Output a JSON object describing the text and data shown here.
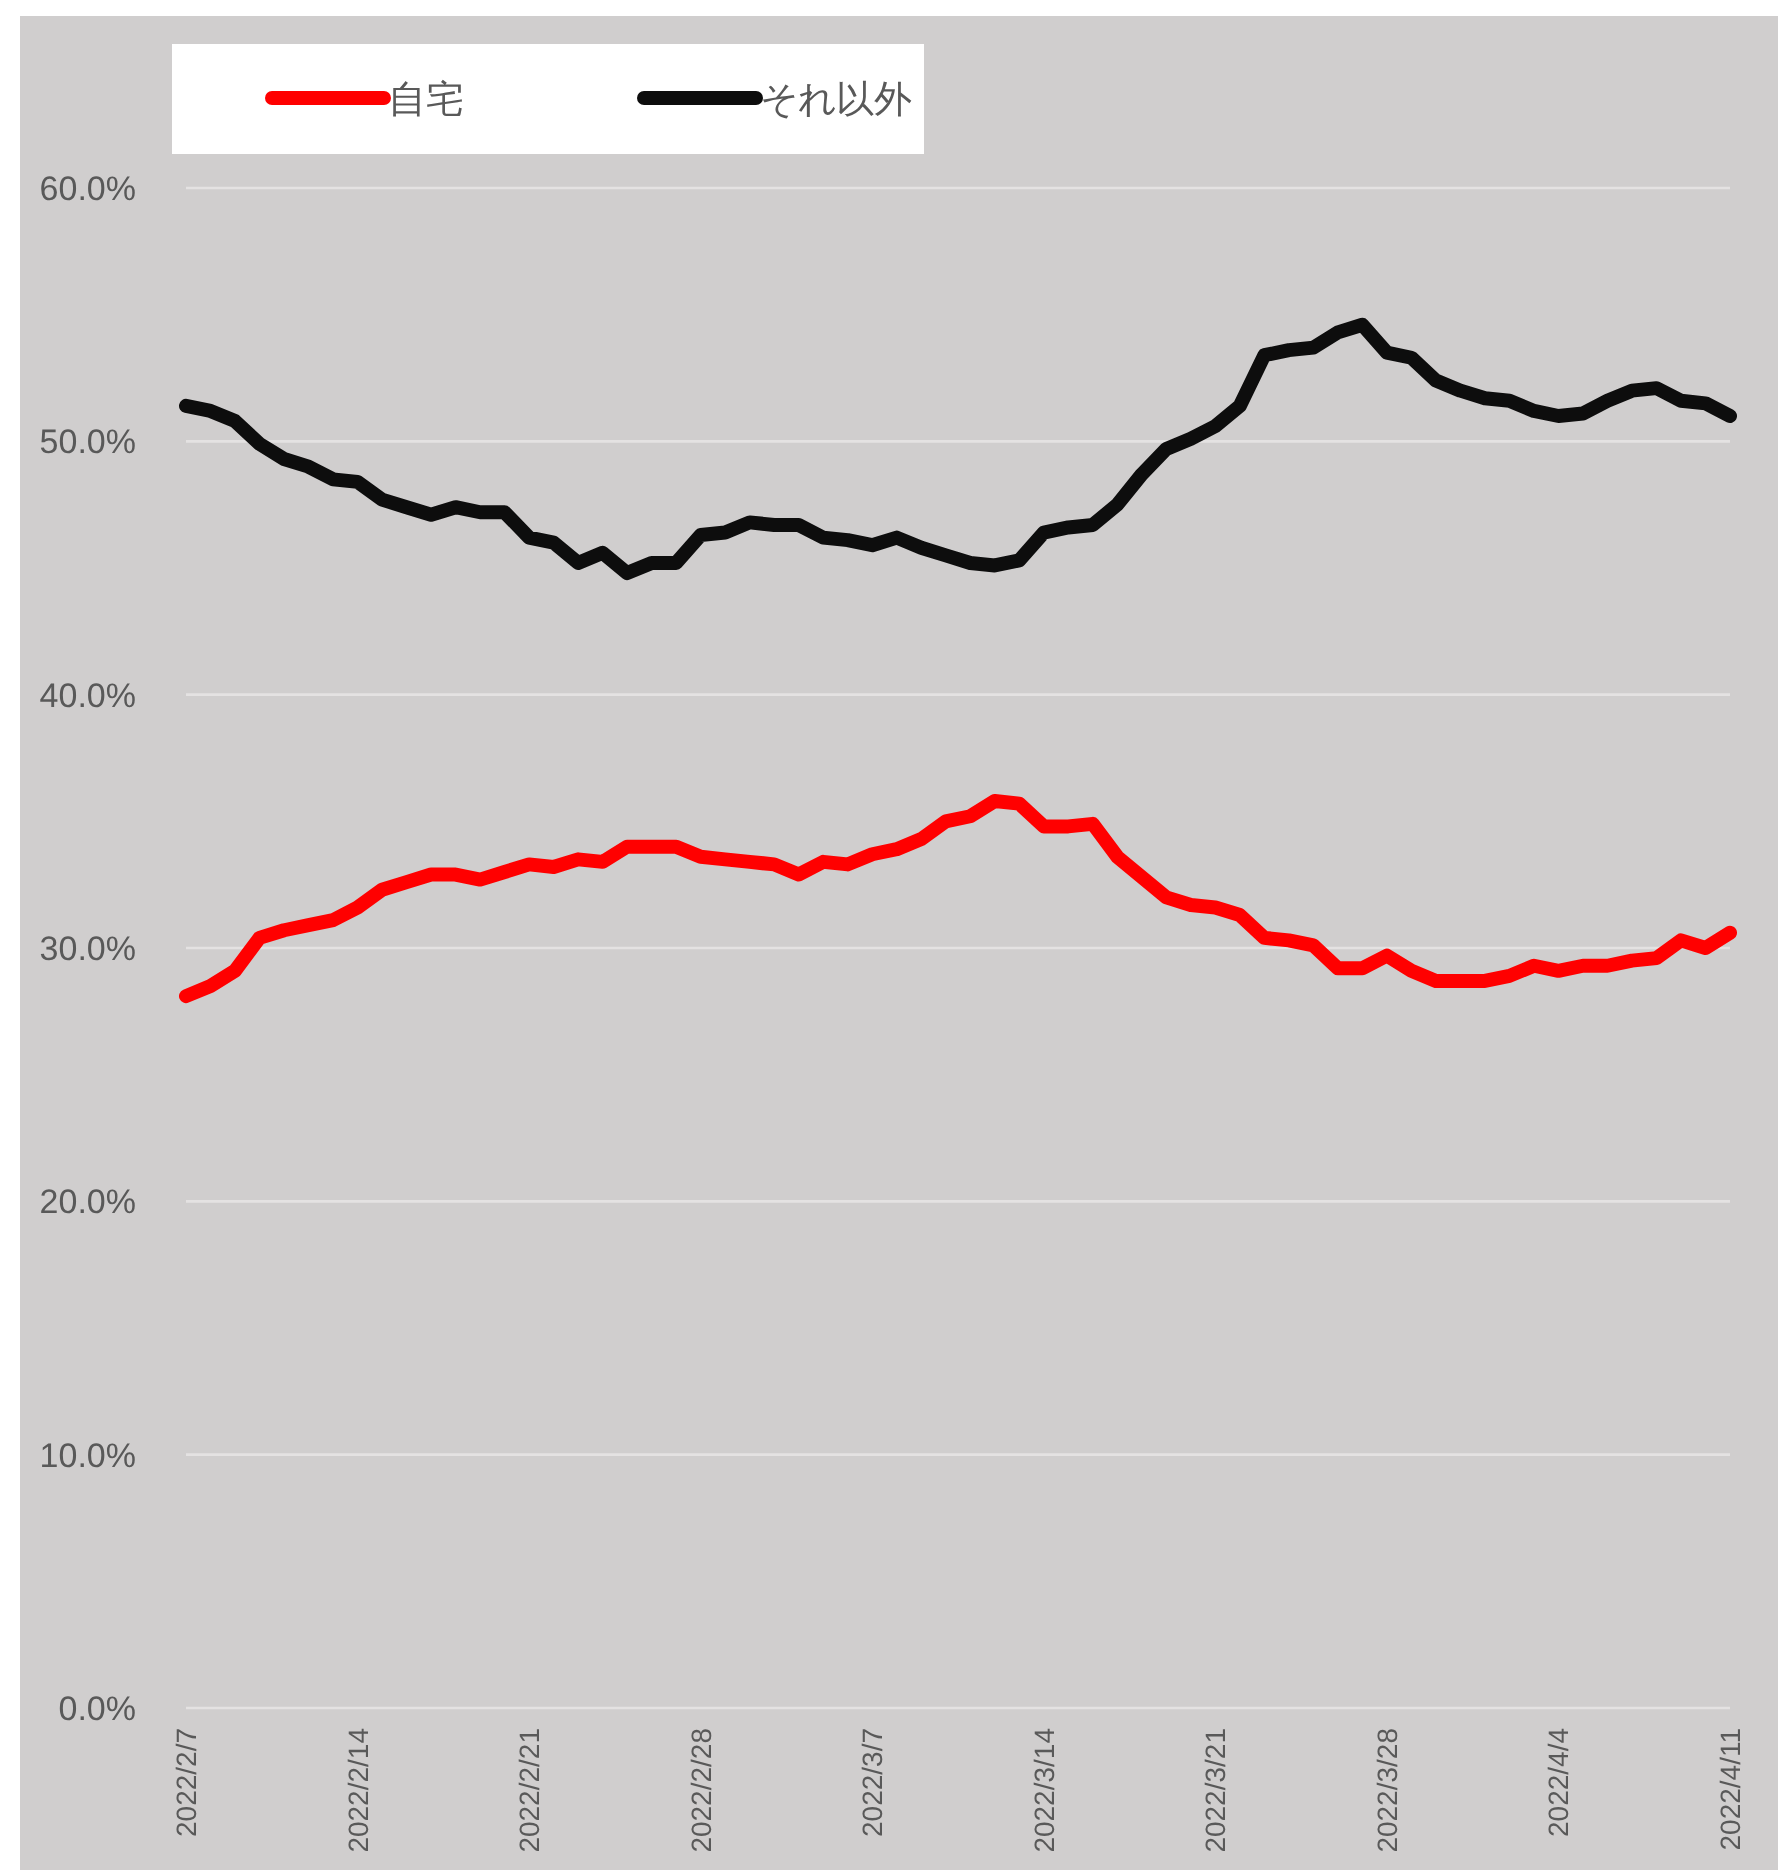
{
  "chart_data": {
    "type": "line",
    "x": [
      "2022-02-07",
      "2022-02-08",
      "2022-02-09",
      "2022-02-10",
      "2022-02-11",
      "2022-02-12",
      "2022-02-13",
      "2022-02-14",
      "2022-02-15",
      "2022-02-16",
      "2022-02-17",
      "2022-02-18",
      "2022-02-19",
      "2022-02-20",
      "2022-02-21",
      "2022-02-22",
      "2022-02-23",
      "2022-02-24",
      "2022-02-25",
      "2022-02-26",
      "2022-02-27",
      "2022-02-28",
      "2022-03-01",
      "2022-03-02",
      "2022-03-03",
      "2022-03-04",
      "2022-03-05",
      "2022-03-06",
      "2022-03-07",
      "2022-03-08",
      "2022-03-09",
      "2022-03-10",
      "2022-03-11",
      "2022-03-12",
      "2022-03-13",
      "2022-03-14",
      "2022-03-15",
      "2022-03-16",
      "2022-03-17",
      "2022-03-18",
      "2022-03-19",
      "2022-03-20",
      "2022-03-21",
      "2022-03-22",
      "2022-03-23",
      "2022-03-24",
      "2022-03-25",
      "2022-03-26",
      "2022-03-27",
      "2022-03-28",
      "2022-03-29",
      "2022-03-30",
      "2022-03-31",
      "2022-04-01",
      "2022-04-02",
      "2022-04-03",
      "2022-04-04",
      "2022-04-05",
      "2022-04-06",
      "2022-04-07",
      "2022-04-08",
      "2022-04-09",
      "2022-04-10",
      "2022-04-11"
    ],
    "series": [
      {
        "name": "自宅",
        "color": "#ff0000",
        "values": [
          28.1,
          28.5,
          29.1,
          30.4,
          30.7,
          30.9,
          31.1,
          31.6,
          32.3,
          32.6,
          32.9,
          32.9,
          32.7,
          33.0,
          33.3,
          33.2,
          33.5,
          33.4,
          34.0,
          34.0,
          34.0,
          33.6,
          33.5,
          33.4,
          33.3,
          32.9,
          33.4,
          33.3,
          33.7,
          33.9,
          34.3,
          35.0,
          35.2,
          35.8,
          35.7,
          34.8,
          34.8,
          34.9,
          33.6,
          32.8,
          32.0,
          31.7,
          31.6,
          31.3,
          30.4,
          30.3,
          30.1,
          29.2,
          29.2,
          29.7,
          29.1,
          28.7,
          28.7,
          28.7,
          28.9,
          29.3,
          29.1,
          29.3,
          29.3,
          29.5,
          29.6,
          30.3,
          30.0,
          30.6
        ]
      },
      {
        "name": "それ以外",
        "color": "#0d0d0d",
        "values": [
          51.4,
          51.2,
          50.8,
          49.9,
          49.3,
          49.0,
          48.5,
          48.4,
          47.7,
          47.4,
          47.1,
          47.4,
          47.2,
          47.2,
          46.2,
          46.0,
          45.2,
          45.6,
          44.8,
          45.2,
          45.2,
          46.3,
          46.4,
          46.8,
          46.7,
          46.7,
          46.2,
          46.1,
          45.9,
          46.2,
          45.8,
          45.5,
          45.2,
          45.1,
          45.3,
          46.4,
          46.6,
          46.7,
          47.5,
          48.7,
          49.7,
          50.1,
          50.6,
          51.4,
          53.4,
          53.6,
          53.7,
          54.3,
          54.6,
          53.5,
          53.3,
          52.4,
          52.0,
          51.7,
          51.6,
          51.2,
          51.0,
          51.1,
          51.6,
          52.0,
          52.1,
          51.6,
          51.5,
          51.0
        ]
      }
    ],
    "xlim": [
      "2022-02-07",
      "2022-04-11"
    ],
    "xticks": [
      {
        "value": "2022-02-07",
        "label": "2022/2/7"
      },
      {
        "value": "2022-02-14",
        "label": "2022/2/14"
      },
      {
        "value": "2022-02-21",
        "label": "2022/2/21"
      },
      {
        "value": "2022-02-28",
        "label": "2022/2/28"
      },
      {
        "value": "2022-03-07",
        "label": "2022/3/7"
      },
      {
        "value": "2022-03-14",
        "label": "2022/3/14"
      },
      {
        "value": "2022-03-21",
        "label": "2022/3/21"
      },
      {
        "value": "2022-03-28",
        "label": "2022/3/28"
      },
      {
        "value": "2022-04-04",
        "label": "2022/4/4"
      },
      {
        "value": "2022-04-11",
        "label": "2022/4/11"
      }
    ],
    "ylim": [
      0,
      60
    ],
    "yticks": [
      {
        "value": 0,
        "label": "0.0%"
      },
      {
        "value": 10,
        "label": "10.0%"
      },
      {
        "value": 20,
        "label": "20.0%"
      },
      {
        "value": 30,
        "label": "30.0%"
      },
      {
        "value": 40,
        "label": "40.0%"
      },
      {
        "value": 50,
        "label": "50.0%"
      },
      {
        "value": 60,
        "label": "60.0%"
      }
    ],
    "grid": "y",
    "legend": "top left",
    "marker": "none",
    "line_style": "solid"
  }
}
